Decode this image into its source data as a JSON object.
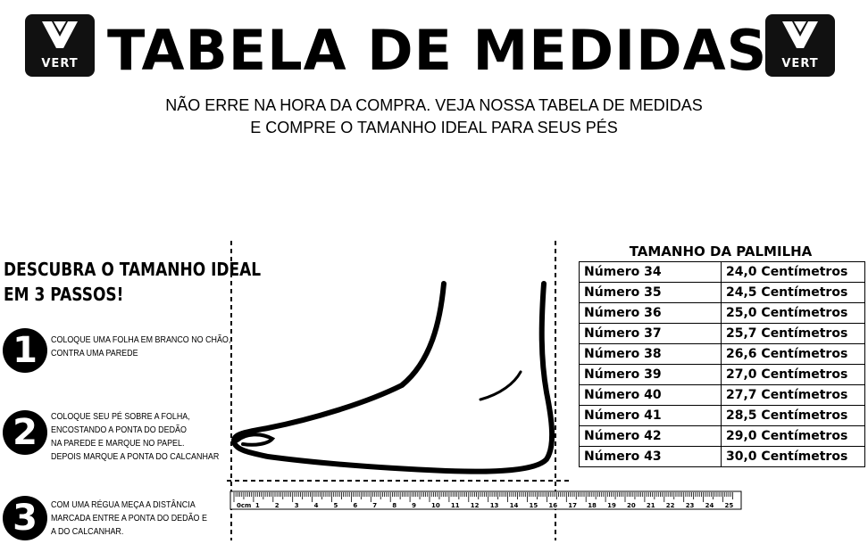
{
  "logo": {
    "brand": "VERT"
  },
  "header": {
    "title": "TABELA DE MEDIDAS",
    "subtitle_line1": "NÃO ERRE NA HORA DA COMPRA. VEJA NOSSA TABELA DE MEDIDAS",
    "subtitle_line2": "E COMPRE  O TAMANHO IDEAL PARA SEUS PÉS"
  },
  "steps": {
    "title_line1": "DESCUBRA O TAMANHO IDEAL",
    "title_line2": "EM 3 PASSOS!",
    "items": [
      {
        "number": "1",
        "lines": [
          "COLOQUE UMA FOLHA EM BRANCO NO CHÃO,",
          "CONTRA UMA PAREDE"
        ]
      },
      {
        "number": "2",
        "lines": [
          "COLOQUE SEU PÉ SOBRE A FOLHA,",
          "ENCOSTANDO A PONTA DO DEDÃO",
          "NA PAREDE E MARQUE NO PAPEL.",
          "DEPOIS MARQUE A PONTA DO CALCANHAR"
        ]
      },
      {
        "number": "3",
        "lines": [
          "COM UMA RÉGUA MEÇA A DISTÂNCIA",
          "MARCADA ENTRE A PONTA DO DEDÃO E",
          "A DO CALCANHAR."
        ]
      }
    ]
  },
  "size_table": {
    "title": "TAMANHO DA PALMILHA",
    "rows": [
      {
        "size": "Número 34",
        "length": "24,0 Centímetros"
      },
      {
        "size": "Número 35",
        "length": "24,5 Centímetros"
      },
      {
        "size": "Número 36",
        "length": "25,0 Centímetros"
      },
      {
        "size": "Número 37",
        "length": "25,7 Centímetros"
      },
      {
        "size": "Número 38",
        "length": "26,6 Centímetros"
      },
      {
        "size": "Número 39",
        "length": "27,0 Centímetros"
      },
      {
        "size": "Número 40",
        "length": "27,7 Centímetros"
      },
      {
        "size": "Número 41",
        "length": "28,5 Centímetros"
      },
      {
        "size": "Número 42",
        "length": "29,0 Centímetros"
      },
      {
        "size": "Número 43",
        "length": "30,0 Centímetros"
      }
    ]
  },
  "ruler": {
    "unit_label": "0cm",
    "labels": [
      "1",
      "2",
      "3",
      "4",
      "5",
      "6",
      "7",
      "8",
      "9",
      "10",
      "11",
      "12",
      "13",
      "14",
      "15",
      "16",
      "17",
      "18",
      "19",
      "20",
      "21",
      "22",
      "23",
      "24",
      "25",
      "2"
    ]
  }
}
